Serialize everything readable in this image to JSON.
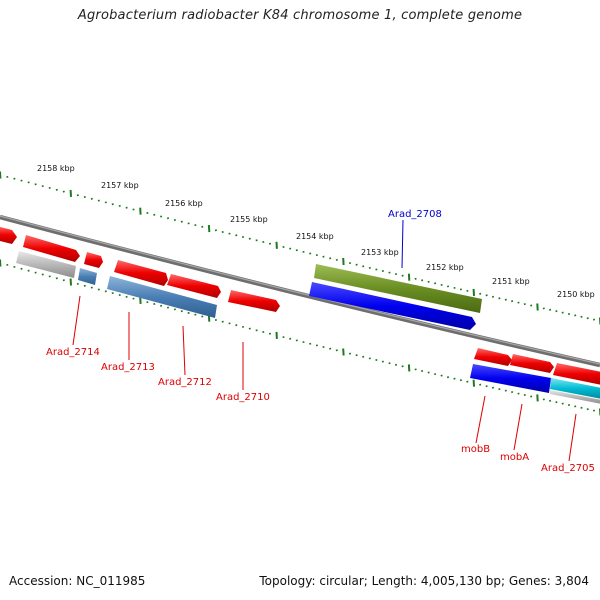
{
  "title": "Agrobacterium radiobacter K84 chromosome 1, complete genome",
  "accession_text": "Accession: NC_011985",
  "summary_text": "Topology: circular; Length: 4,005,130 bp; Genes: 3,804",
  "colors": {
    "gene_red": "#ee0000",
    "gene_grey": "#b8b8b8",
    "gene_steelblue": "#4a7fb5",
    "gene_green": "#6b8e23",
    "gene_blue": "#0000ee",
    "gene_cyan": "#00bcd4",
    "tick_green": "#1f7a1f",
    "label_red": "#dd0000",
    "label_blue": "#0000cc",
    "backbone": "#808080"
  },
  "kbp_labels": [
    "2158 kbp",
    "2157 kbp",
    "2156 kbp",
    "2155 kbp",
    "2154 kbp",
    "2153 kbp",
    "2152 kbp",
    "2151 kbp",
    "2150 kbp"
  ],
  "gene_labels": [
    "Arad_2708",
    "Arad_2714",
    "Arad_2713",
    "Arad_2712",
    "Arad_2710",
    "mobB",
    "mobA",
    "Arad_2705"
  ]
}
